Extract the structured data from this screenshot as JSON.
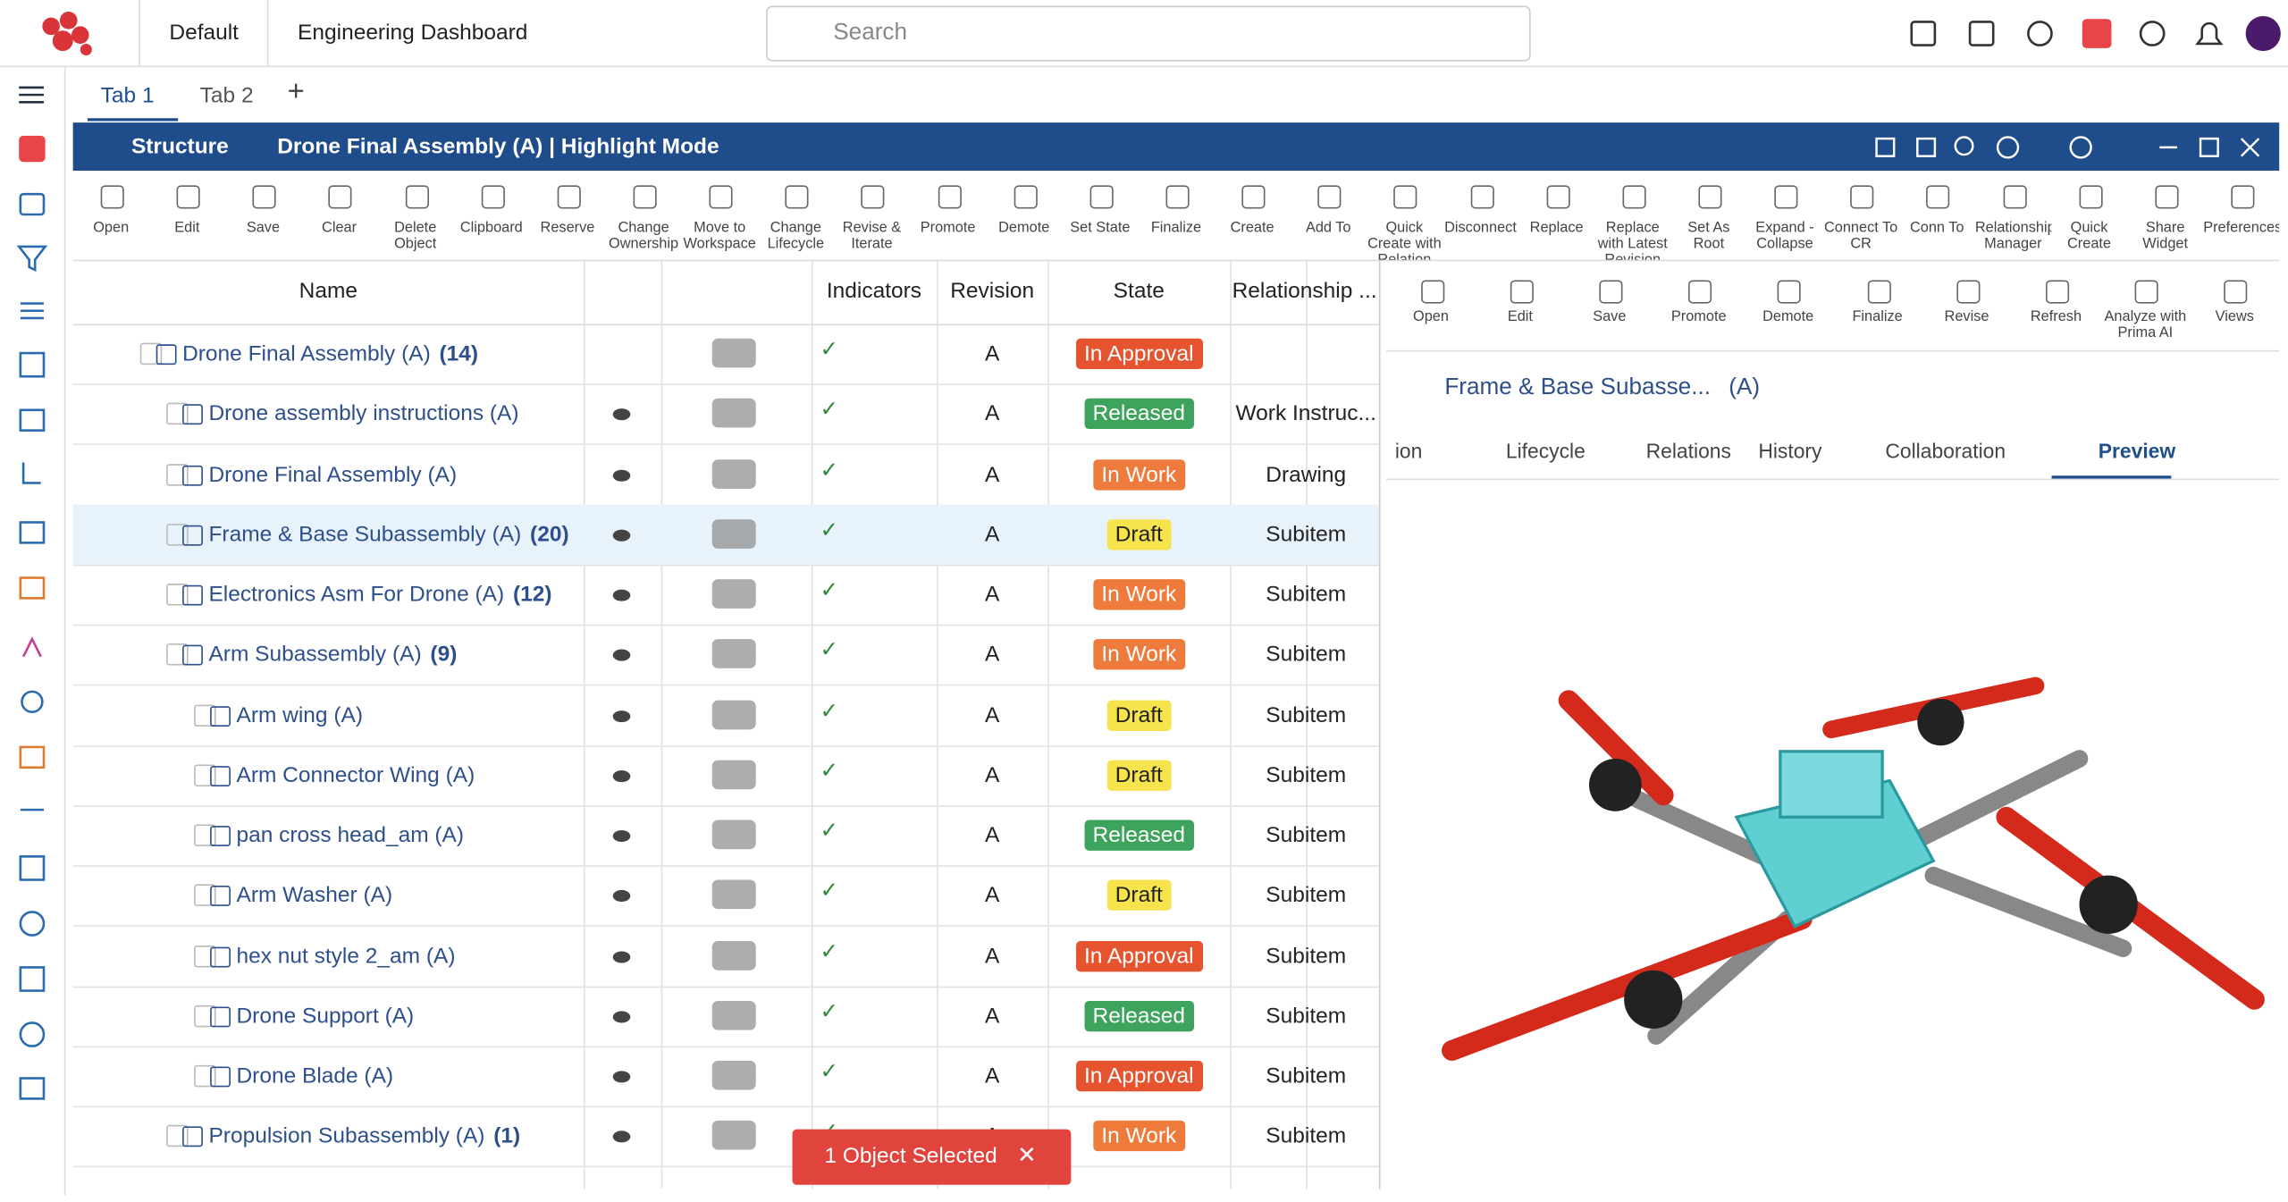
{
  "header": {
    "workspace": "Default",
    "dashboard": "Engineering Dashboard",
    "search": "Search"
  },
  "tabs": [
    "Tab 1",
    "Tab 2"
  ],
  "panel": {
    "section": "Structure",
    "title": "Drone Final Assembly (A) | Highlight Mode"
  },
  "toolbar": [
    "Open",
    "Edit",
    "Save",
    "Clear",
    "Delete Object",
    "Clipboard",
    "Reserve",
    "Change Ownership",
    "Move to Workspace",
    "Change Lifecycle",
    "Revise & Iterate",
    "Promote",
    "Demote",
    "Set State",
    "Finalize",
    "Create",
    "Add To",
    "Quick Create with Relation",
    "Disconnect",
    "Replace",
    "Replace with Latest Revision",
    "Set As Root",
    "Expand - Collapse",
    "Connect To CR",
    "Conn To",
    "Relationship Manager",
    "Quick Create",
    "Share Widget",
    "Preferences"
  ],
  "table": {
    "columns": [
      "Name",
      "Indicators",
      "Revision",
      "State",
      "Relationship ..."
    ],
    "rows": [
      {
        "name": "Drone Final Assembly (A)",
        "count": "(14)",
        "revision": "A",
        "state": "In Approval",
        "relationship": null
      },
      {
        "name": "Drone assembly instructions (A)",
        "count": null,
        "revision": "A",
        "state": "Released",
        "relationship": "Work Instruc..."
      },
      {
        "name": "Drone Final Assembly (A)",
        "count": null,
        "revision": "A",
        "state": "In Work",
        "relationship": "Drawing"
      },
      {
        "name": "Frame & Base Subassembly (A)",
        "count": "(20)",
        "revision": "A",
        "state": "Draft",
        "relationship": "Subitem"
      },
      {
        "name": "Electronics Asm For Drone (A)",
        "count": "(12)",
        "revision": "A",
        "state": "In Work",
        "relationship": "Subitem"
      },
      {
        "name": "Arm Subassembly (A)",
        "count": "(9)",
        "revision": "A",
        "state": "In Work",
        "relationship": "Subitem"
      },
      {
        "name": "Arm wing (A)",
        "count": null,
        "revision": "A",
        "state": "Draft",
        "relationship": "Subitem"
      },
      {
        "name": "Arm Connector Wing (A)",
        "count": null,
        "revision": "A",
        "state": "Draft",
        "relationship": "Subitem"
      },
      {
        "name": "pan cross head_am (A)",
        "count": null,
        "revision": "A",
        "state": "Released",
        "relationship": "Subitem"
      },
      {
        "name": "Arm Washer (A)",
        "count": null,
        "revision": "A",
        "state": "Draft",
        "relationship": "Subitem"
      },
      {
        "name": "hex nut style 2_am (A)",
        "count": null,
        "revision": "A",
        "state": "In Approval",
        "relationship": "Subitem"
      },
      {
        "name": "Drone Support (A)",
        "count": null,
        "revision": "A",
        "state": "Released",
        "relationship": "Subitem"
      },
      {
        "name": "Drone Blade (A)",
        "count": null,
        "revision": "A",
        "state": "In Approval",
        "relationship": "Subitem"
      },
      {
        "name": "Propulsion Subassembly (A)",
        "count": "(1)",
        "revision": "A",
        "state": "In Work",
        "relationship": "Subitem"
      }
    ]
  },
  "detail": {
    "toolbar": [
      "Open",
      "Edit",
      "Save",
      "Promote",
      "Demote",
      "Finalize",
      "Revise",
      "Refresh",
      "Analyze with Prima AI",
      "Views"
    ],
    "object": {
      "name": "Frame & Base Subasse...",
      "revision": "(A)"
    },
    "tabs": [
      "ion",
      "Lifecycle",
      "Relations",
      "History",
      "Collaboration",
      "Preview"
    ]
  },
  "status": "1 Object Selected"
}
